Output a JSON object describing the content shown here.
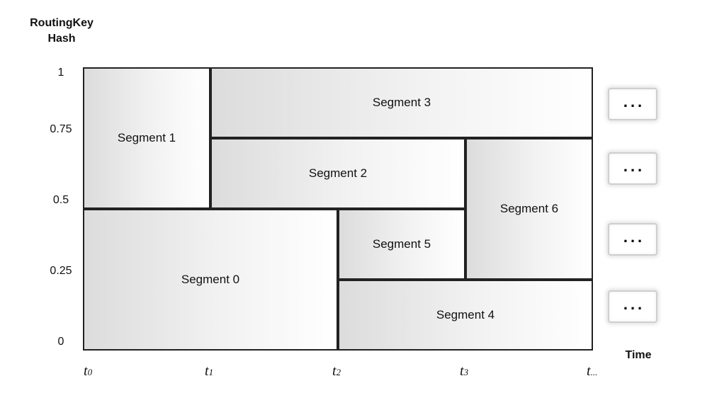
{
  "y_axis": {
    "title_lines": [
      "RoutingKey",
      "Hash"
    ],
    "ticks": [
      "1",
      "0.75",
      "0.5",
      "0.25",
      "0"
    ]
  },
  "x_axis": {
    "title": "Time",
    "ticks": [
      {
        "base": "t",
        "sub": "0"
      },
      {
        "base": "t",
        "sub": "1"
      },
      {
        "base": "t",
        "sub": "2"
      },
      {
        "base": "t",
        "sub": "3"
      },
      {
        "base": "t",
        "sub": "..."
      }
    ]
  },
  "segments": [
    {
      "label": "Segment 0",
      "time_start": 0,
      "time_end": 2,
      "hash_low": 0,
      "hash_high": 0.5
    },
    {
      "label": "Segment 1",
      "time_start": 0,
      "time_end": 1,
      "hash_low": 0.5,
      "hash_high": 1
    },
    {
      "label": "Segment 2",
      "time_start": 1,
      "time_end": 3,
      "hash_low": 0.5,
      "hash_high": 0.75
    },
    {
      "label": "Segment 3",
      "time_start": 1,
      "time_end": 4,
      "hash_low": 0.75,
      "hash_high": 1
    },
    {
      "label": "Segment 4",
      "time_start": 2,
      "time_end": 4,
      "hash_low": 0,
      "hash_high": 0.25
    },
    {
      "label": "Segment 5",
      "time_start": 2,
      "time_end": 3,
      "hash_low": 0.25,
      "hash_high": 0.5
    },
    {
      "label": "Segment 6",
      "time_start": 3,
      "time_end": 4,
      "hash_low": 0.25,
      "hash_high": 0.75
    }
  ],
  "continuations": [
    "...",
    "...",
    "...",
    "..."
  ]
}
